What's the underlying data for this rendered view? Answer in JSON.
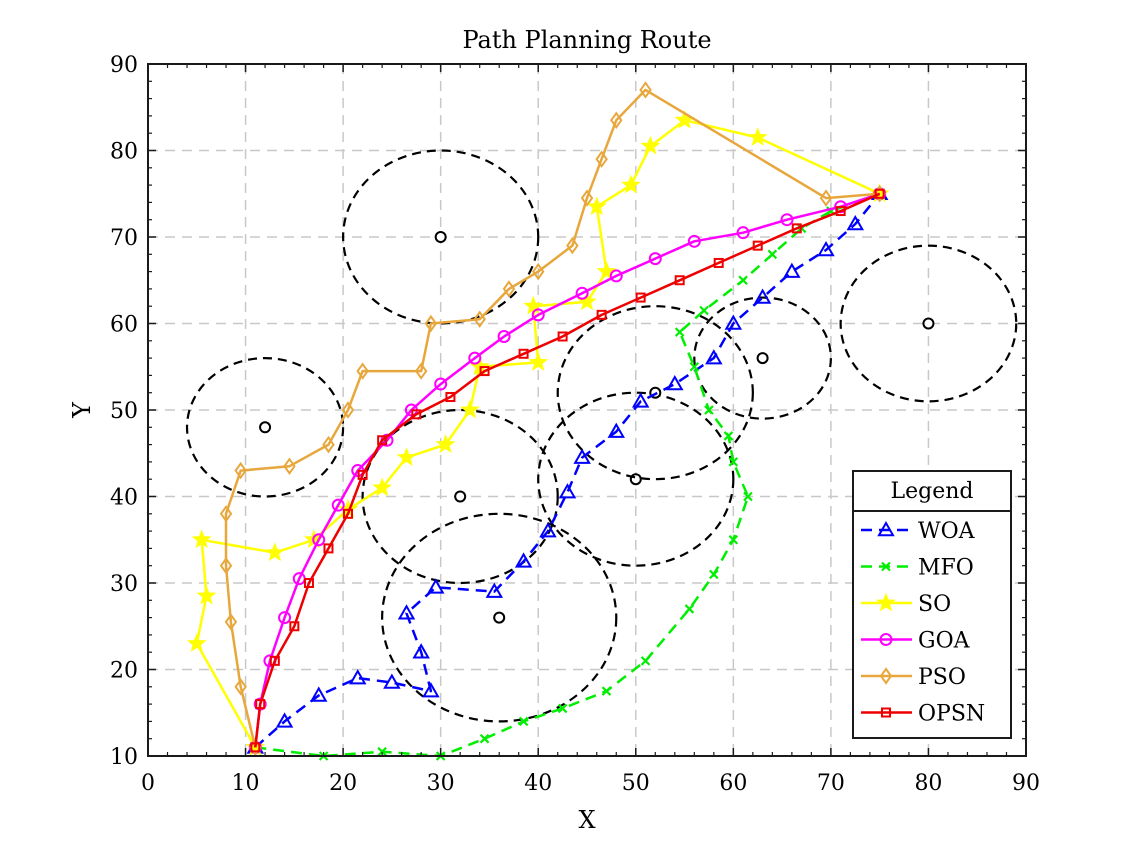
{
  "chart_data": {
    "type": "line",
    "title": "Path Planning Route",
    "xlabel": "X",
    "ylabel": "Y",
    "xlim": [
      0,
      90
    ],
    "ylim": [
      10,
      90
    ],
    "xticks": [
      0,
      10,
      20,
      30,
      40,
      50,
      60,
      70,
      80,
      90
    ],
    "yticks": [
      10,
      20,
      30,
      40,
      50,
      60,
      70,
      80,
      90
    ],
    "grid": true,
    "legend": {
      "title": "Legend",
      "placement": "bottom-right"
    },
    "obstacles": [
      {
        "center": [
          12,
          48
        ],
        "radius": 8
      },
      {
        "center": [
          30,
          70
        ],
        "radius": 10
      },
      {
        "center": [
          32,
          40
        ],
        "radius": 10
      },
      {
        "center": [
          36,
          26
        ],
        "radius": 12
      },
      {
        "center": [
          50,
          42
        ],
        "radius": 10
      },
      {
        "center": [
          52,
          52
        ],
        "radius": 10
      },
      {
        "center": [
          63,
          56
        ],
        "radius": 7
      },
      {
        "center": [
          80,
          60
        ],
        "radius": 9
      }
    ],
    "series": [
      {
        "name": "WOA",
        "color": "#0000ff",
        "dash": "dashed",
        "marker": "triangle",
        "points": [
          [
            11,
            11
          ],
          [
            14,
            14
          ],
          [
            17.5,
            17
          ],
          [
            21.5,
            19
          ],
          [
            25,
            18.5
          ],
          [
            29,
            17.5
          ],
          [
            28,
            22
          ],
          [
            26.5,
            26.5
          ],
          [
            29.5,
            29.5
          ],
          [
            35.5,
            29
          ],
          [
            38.5,
            32.5
          ],
          [
            41,
            36
          ],
          [
            43,
            40.5
          ],
          [
            44.5,
            44.5
          ],
          [
            48,
            47.5
          ],
          [
            50.5,
            51
          ],
          [
            54,
            53
          ],
          [
            58,
            56
          ],
          [
            60,
            60
          ],
          [
            63,
            63
          ],
          [
            66,
            66
          ],
          [
            69.5,
            68.5
          ],
          [
            72.5,
            71.5
          ],
          [
            75,
            75
          ]
        ]
      },
      {
        "name": "MFO",
        "color": "#00ee00",
        "dash": "dashed",
        "marker": "x",
        "points": [
          [
            11,
            11
          ],
          [
            18,
            10
          ],
          [
            24,
            10.5
          ],
          [
            30,
            10
          ],
          [
            34.5,
            12
          ],
          [
            38.5,
            14
          ],
          [
            42.5,
            15.5
          ],
          [
            47,
            17.5
          ],
          [
            51,
            21
          ],
          [
            55.5,
            27
          ],
          [
            58,
            31
          ],
          [
            60,
            35
          ],
          [
            61.5,
            40
          ],
          [
            60,
            44
          ],
          [
            59.5,
            47
          ],
          [
            57.5,
            50
          ],
          [
            56,
            55
          ],
          [
            54.5,
            59
          ],
          [
            57,
            61.5
          ],
          [
            61,
            65
          ],
          [
            64,
            68
          ],
          [
            67,
            71
          ],
          [
            70,
            73
          ],
          [
            75,
            75
          ]
        ]
      },
      {
        "name": "SO",
        "color": "#ffff00",
        "dash": "solid",
        "marker": "star",
        "points": [
          [
            11,
            11
          ],
          [
            5,
            23
          ],
          [
            6,
            28.5
          ],
          [
            5.5,
            35
          ],
          [
            13,
            33.5
          ],
          [
            17,
            35
          ],
          [
            20.5,
            38.5
          ],
          [
            24,
            41
          ],
          [
            26.5,
            44.5
          ],
          [
            30.5,
            46
          ],
          [
            33,
            50
          ],
          [
            34,
            55
          ],
          [
            40,
            55.5
          ],
          [
            39.5,
            62
          ],
          [
            45,
            62.5
          ],
          [
            47,
            66
          ],
          [
            46,
            73.5
          ],
          [
            49.5,
            76
          ],
          [
            51.5,
            80.5
          ],
          [
            55,
            83.5
          ],
          [
            62.5,
            81.5
          ],
          [
            75,
            75
          ]
        ]
      },
      {
        "name": "GOA",
        "color": "#ff00ff",
        "dash": "solid",
        "marker": "circle",
        "points": [
          [
            11,
            11
          ],
          [
            11.5,
            16
          ],
          [
            12.5,
            21
          ],
          [
            14,
            26
          ],
          [
            15.5,
            30.5
          ],
          [
            17.5,
            35
          ],
          [
            19.5,
            39
          ],
          [
            21.5,
            43
          ],
          [
            24.5,
            46.5
          ],
          [
            27,
            50
          ],
          [
            30,
            53
          ],
          [
            33.5,
            56
          ],
          [
            36.5,
            58.5
          ],
          [
            40,
            61
          ],
          [
            44.5,
            63.5
          ],
          [
            48,
            65.5
          ],
          [
            52,
            67.5
          ],
          [
            56,
            69.5
          ],
          [
            61,
            70.5
          ],
          [
            65.5,
            72
          ],
          [
            71,
            73.5
          ],
          [
            75,
            75
          ]
        ]
      },
      {
        "name": "PSO",
        "color": "#e8a73c",
        "dash": "solid",
        "marker": "diamond",
        "points": [
          [
            11,
            11
          ],
          [
            9.5,
            18
          ],
          [
            8.5,
            25.5
          ],
          [
            8,
            32
          ],
          [
            8,
            38
          ],
          [
            9.5,
            43
          ],
          [
            14.5,
            43.5
          ],
          [
            18.5,
            46
          ],
          [
            20.5,
            50
          ],
          [
            22,
            54.5
          ],
          [
            28,
            54.5
          ],
          [
            29,
            60
          ],
          [
            34,
            60.5
          ],
          [
            37,
            64
          ],
          [
            40,
            66
          ],
          [
            43.5,
            69
          ],
          [
            45,
            74.5
          ],
          [
            46.5,
            79
          ],
          [
            48,
            83.5
          ],
          [
            51,
            87
          ],
          [
            69.5,
            74.5
          ],
          [
            75,
            75
          ]
        ]
      },
      {
        "name": "OPSN",
        "color": "#ee0000",
        "dash": "solid",
        "marker": "square",
        "points": [
          [
            11,
            11
          ],
          [
            11.5,
            16
          ],
          [
            13,
            21
          ],
          [
            15,
            25
          ],
          [
            16.5,
            30
          ],
          [
            18.5,
            34
          ],
          [
            20.5,
            38
          ],
          [
            22,
            42.5
          ],
          [
            24,
            46.5
          ],
          [
            27.5,
            49.5
          ],
          [
            31,
            51.5
          ],
          [
            34.5,
            54.5
          ],
          [
            38.5,
            56.5
          ],
          [
            42.5,
            58.5
          ],
          [
            46.5,
            61
          ],
          [
            50.5,
            63
          ],
          [
            54.5,
            65
          ],
          [
            58.5,
            67
          ],
          [
            62.5,
            69
          ],
          [
            66.5,
            71
          ],
          [
            71,
            73
          ],
          [
            75,
            75
          ]
        ]
      }
    ]
  }
}
